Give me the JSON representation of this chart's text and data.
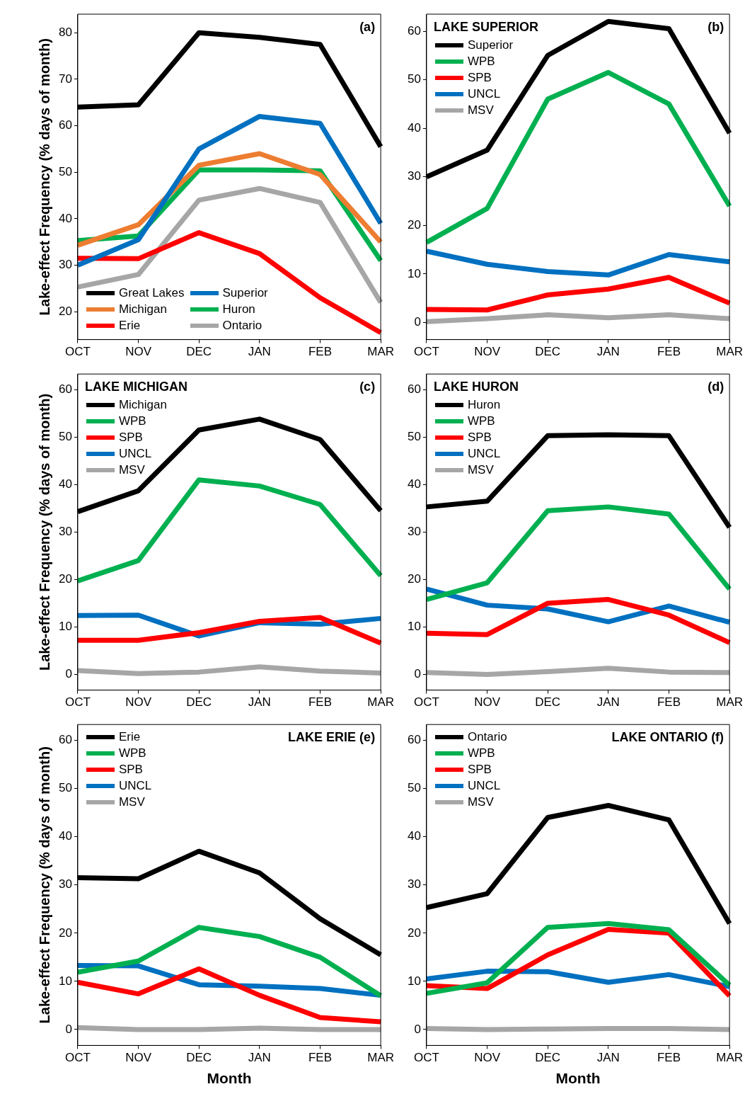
{
  "chart_data": [
    {
      "type": "line",
      "annotations": [
        "(a)"
      ],
      "ylabel": "Lake-effect Frequency (% days of month)",
      "categories": [
        "OCT",
        "NOV",
        "DEC",
        "JAN",
        "FEB",
        "MAR"
      ],
      "ylim": [
        14,
        84
      ],
      "yticks": [
        20,
        30,
        40,
        50,
        60,
        70,
        80
      ],
      "legend": "bottom left",
      "marker": "none",
      "series": [
        {
          "name": "Great Lakes",
          "color": "#000000",
          "values": [
            64,
            64.5,
            80,
            79,
            77.5,
            55.5
          ]
        },
        {
          "name": "Superior",
          "color": "#0070c0",
          "values": [
            30,
            35.5,
            55,
            62,
            60.5,
            39
          ]
        },
        {
          "name": "Michigan",
          "color": "#ed7d31",
          "values": [
            34.3,
            38.7,
            51.5,
            54,
            49.5,
            35
          ]
        },
        {
          "name": "Huron",
          "color": "#00b050",
          "values": [
            35.3,
            36.3,
            50.5,
            50.5,
            50.3,
            31
          ]
        },
        {
          "name": "Erie",
          "color": "#ff0000",
          "values": [
            31.5,
            31.4,
            37,
            32.5,
            23,
            15.5
          ]
        },
        {
          "name": "Ontario",
          "color": "#a6a6a6",
          "values": [
            25.3,
            28,
            44,
            46.5,
            43.5,
            22
          ]
        }
      ]
    },
    {
      "type": "line",
      "title": "LAKE SUPERIOR",
      "annotations": [
        "(b)"
      ],
      "categories": [
        "OCT",
        "NOV",
        "DEC",
        "JAN",
        "FEB",
        "MAR"
      ],
      "ylim": [
        -3.5,
        63.5
      ],
      "yticks": [
        0,
        10,
        20,
        30,
        40,
        50,
        60
      ],
      "legend": "top left",
      "marker": "none",
      "series": [
        {
          "name": "Superior",
          "color": "#000000",
          "values": [
            30,
            35.5,
            55,
            62,
            60.5,
            39
          ]
        },
        {
          "name": "WPB",
          "color": "#00b050",
          "values": [
            16.5,
            23.5,
            46,
            51.5,
            45,
            24
          ]
        },
        {
          "name": "SPB",
          "color": "#ff0000",
          "values": [
            2.7,
            2.6,
            5.7,
            6.9,
            9.3,
            4
          ]
        },
        {
          "name": "UNCL",
          "color": "#0070c0",
          "values": [
            14.7,
            12,
            10.5,
            9.8,
            14,
            12.5
          ]
        },
        {
          "name": "MSV",
          "color": "#a6a6a6",
          "values": [
            0.2,
            0.8,
            1.6,
            1,
            1.6,
            0.8
          ]
        }
      ]
    },
    {
      "type": "line",
      "title": "LAKE MICHIGAN",
      "annotations": [
        "(c)"
      ],
      "ylabel": "Lake-effect Frequency (% days of month)",
      "categories": [
        "OCT",
        "NOV",
        "DEC",
        "JAN",
        "FEB",
        "MAR"
      ],
      "ylim": [
        -3.3,
        63.3
      ],
      "yticks": [
        0,
        10,
        20,
        30,
        40,
        50,
        60
      ],
      "legend": "top left",
      "marker": "none",
      "series": [
        {
          "name": "Michigan",
          "color": "#000000",
          "values": [
            34.3,
            38.7,
            51.5,
            53.8,
            49.5,
            34.5
          ]
        },
        {
          "name": "WPB",
          "color": "#00b050",
          "values": [
            19.7,
            24,
            41,
            39.7,
            35.8,
            20.8
          ]
        },
        {
          "name": "SPB",
          "color": "#ff0000",
          "values": [
            7.2,
            7.2,
            8.8,
            11.2,
            12,
            6.6
          ]
        },
        {
          "name": "UNCL",
          "color": "#0070c0",
          "values": [
            12.4,
            12.5,
            8.1,
            10.9,
            10.6,
            11.8
          ]
        },
        {
          "name": "MSV",
          "color": "#a6a6a6",
          "values": [
            0.8,
            0.2,
            0.5,
            1.6,
            0.7,
            0.3
          ]
        }
      ]
    },
    {
      "type": "line",
      "title": "LAKE HURON",
      "annotations": [
        "(d)"
      ],
      "categories": [
        "OCT",
        "NOV",
        "DEC",
        "JAN",
        "FEB",
        "MAR"
      ],
      "ylim": [
        -3.3,
        63.3
      ],
      "yticks": [
        0,
        10,
        20,
        30,
        40,
        50,
        60
      ],
      "legend": "top left",
      "marker": "none",
      "series": [
        {
          "name": "Huron",
          "color": "#000000",
          "values": [
            35.3,
            36.5,
            50.3,
            50.5,
            50.3,
            31
          ]
        },
        {
          "name": "WPB",
          "color": "#00b050",
          "values": [
            15.8,
            19.3,
            34.5,
            35.3,
            33.8,
            18
          ]
        },
        {
          "name": "SPB",
          "color": "#ff0000",
          "values": [
            8.7,
            8.4,
            15,
            15.8,
            12.5,
            6.7
          ]
        },
        {
          "name": "UNCL",
          "color": "#0070c0",
          "values": [
            18,
            14.6,
            13.8,
            11.1,
            14.4,
            11
          ]
        },
        {
          "name": "MSV",
          "color": "#a6a6a6",
          "values": [
            0.4,
            0,
            0.6,
            1.3,
            0.5,
            0.4
          ]
        }
      ]
    },
    {
      "type": "line",
      "title": "LAKE ERIE",
      "annotations": [
        "(e)"
      ],
      "ylabel": "Lake-effect Frequency (% days of month)",
      "xlabel": "Month",
      "categories": [
        "OCT",
        "NOV",
        "DEC",
        "JAN",
        "FEB",
        "MAR"
      ],
      "ylim": [
        -3.3,
        63.3
      ],
      "yticks": [
        0,
        10,
        20,
        30,
        40,
        50,
        60
      ],
      "legend": "top left",
      "marker": "none",
      "series": [
        {
          "name": "Erie",
          "color": "#000000",
          "values": [
            31.5,
            31.3,
            37,
            32.5,
            23,
            15.5
          ]
        },
        {
          "name": "WPB",
          "color": "#00b050",
          "values": [
            11.9,
            14.2,
            21.2,
            19.3,
            15,
            7
          ]
        },
        {
          "name": "SPB",
          "color": "#ff0000",
          "values": [
            9.8,
            7.4,
            12.6,
            7.1,
            2.5,
            1.6
          ]
        },
        {
          "name": "UNCL",
          "color": "#0070c0",
          "values": [
            13.3,
            13.2,
            9.3,
            9,
            8.5,
            7.1
          ]
        },
        {
          "name": "MSV",
          "color": "#a6a6a6",
          "values": [
            0.4,
            0,
            0,
            0.3,
            0,
            0
          ]
        }
      ]
    },
    {
      "type": "line",
      "title": "LAKE ONTARIO",
      "annotations": [
        "(f)"
      ],
      "xlabel": "Month",
      "categories": [
        "OCT",
        "NOV",
        "DEC",
        "JAN",
        "FEB",
        "MAR"
      ],
      "ylim": [
        -3.3,
        63.3
      ],
      "yticks": [
        0,
        10,
        20,
        30,
        40,
        50,
        60
      ],
      "legend": "top left",
      "marker": "none",
      "series": [
        {
          "name": "Ontario",
          "color": "#000000",
          "values": [
            25.3,
            28.2,
            44,
            46.5,
            43.5,
            22
          ]
        },
        {
          "name": "WPB",
          "color": "#00b050",
          "values": [
            7.5,
            9.7,
            21.2,
            22,
            20.7,
            9.2
          ]
        },
        {
          "name": "SPB",
          "color": "#ff0000",
          "values": [
            9.1,
            8.5,
            15.5,
            20.8,
            20,
            7
          ]
        },
        {
          "name": "UNCL",
          "color": "#0070c0",
          "values": [
            10.5,
            12.1,
            12,
            9.8,
            11.4,
            8.9
          ]
        },
        {
          "name": "MSV",
          "color": "#a6a6a6",
          "values": [
            0.2,
            0,
            0.1,
            0.2,
            0.2,
            0
          ]
        }
      ]
    }
  ]
}
